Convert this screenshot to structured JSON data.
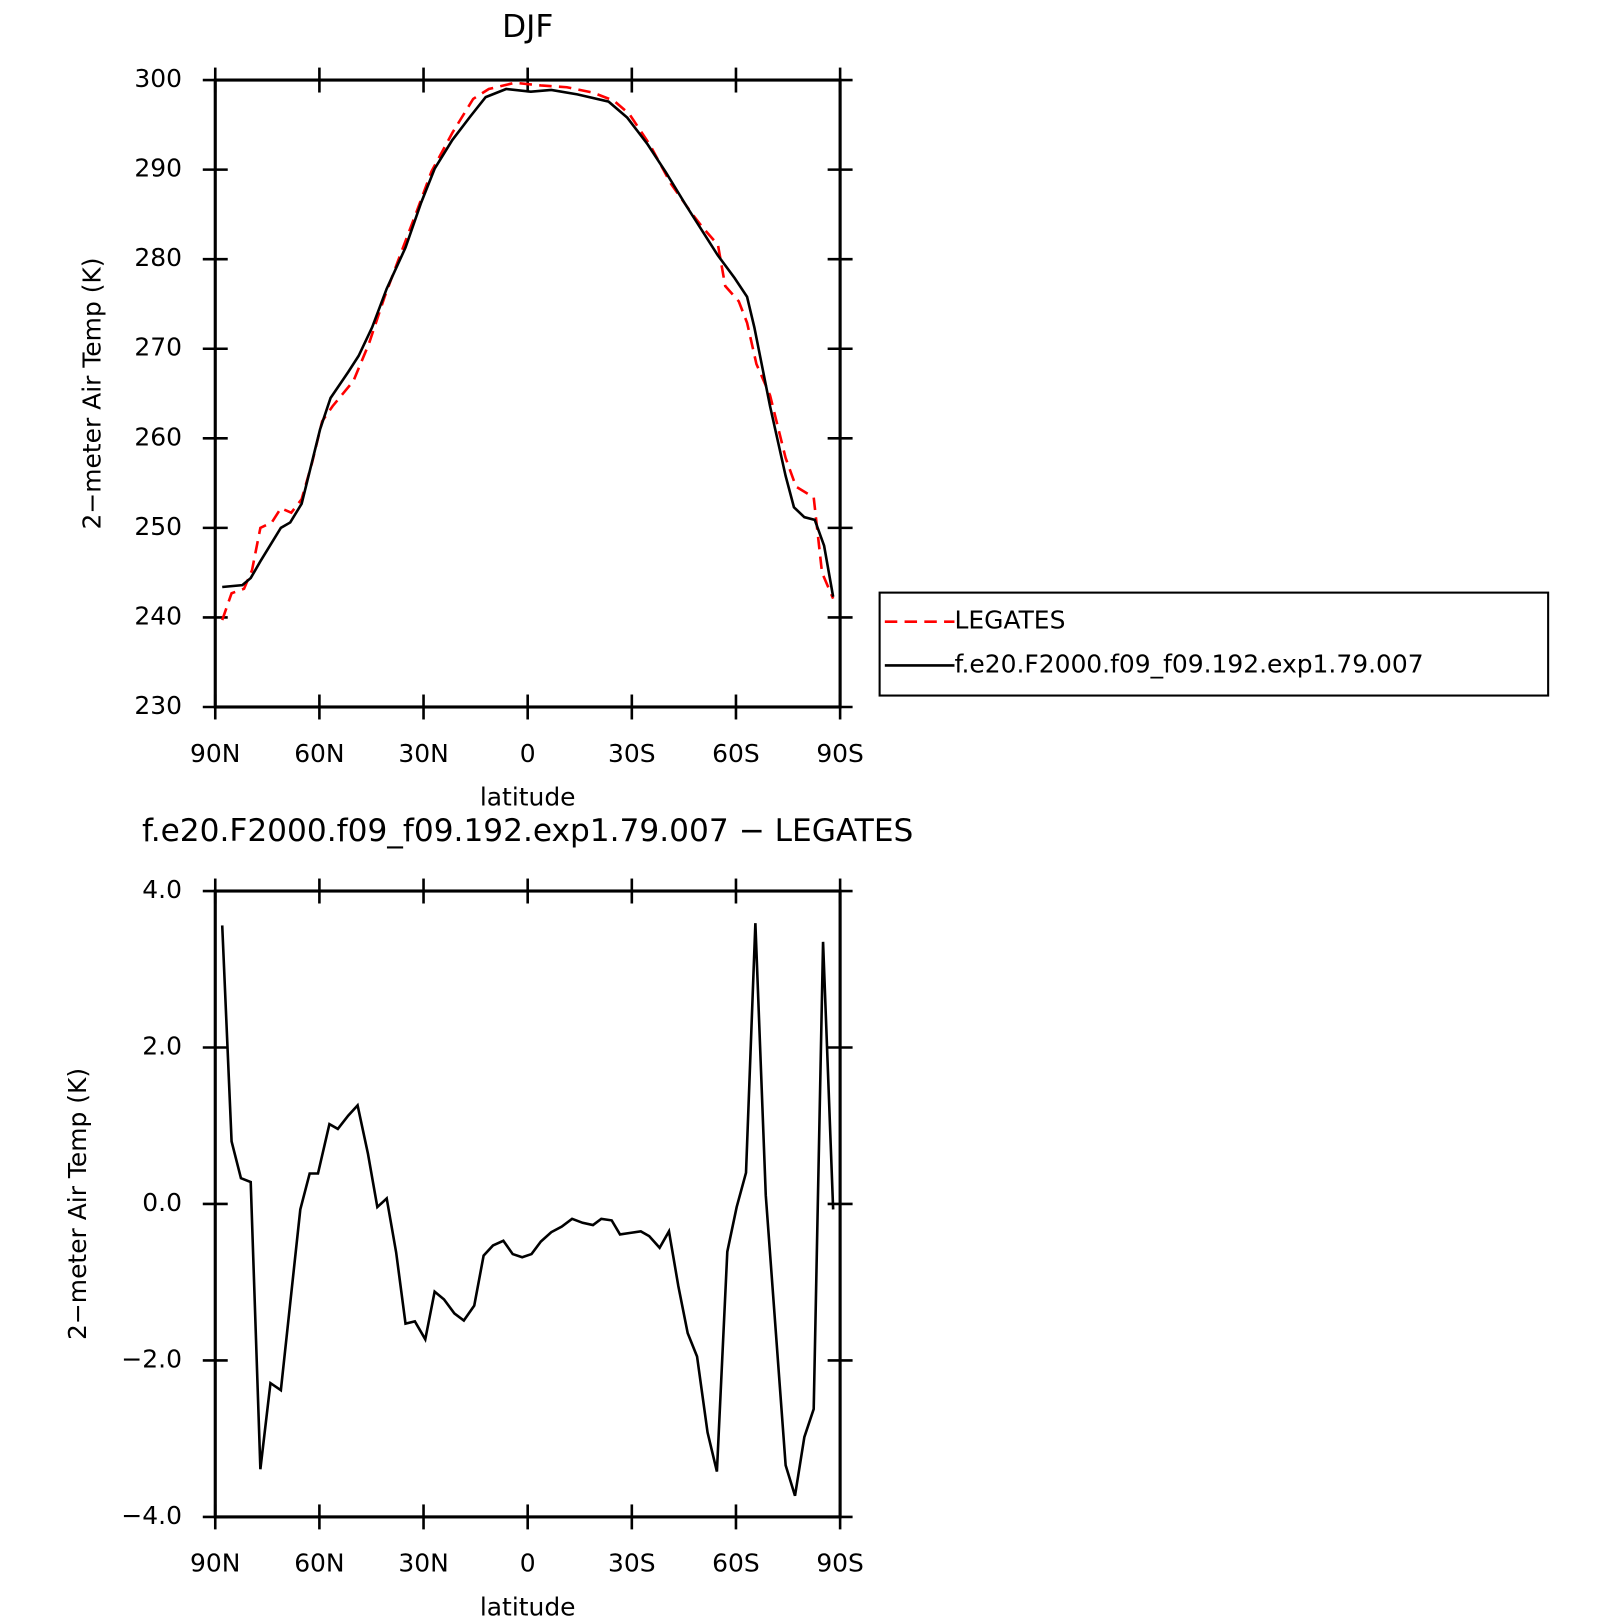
{
  "chart_data": [
    {
      "type": "line",
      "title": "DJF",
      "xlabel": "latitude",
      "ylabel": "2−meter Air Temp (K)",
      "xlim": [
        90,
        -90
      ],
      "xticks": [
        {
          "value": 90,
          "label": "90N"
        },
        {
          "value": 60,
          "label": "60N"
        },
        {
          "value": 30,
          "label": "30N"
        },
        0,
        {
          "value": -30,
          "label": "30S"
        },
        {
          "value": -60,
          "label": "60S"
        },
        {
          "value": -90,
          "label": "90S"
        }
      ],
      "ylim": [
        230,
        300
      ],
      "yticks": [
        230,
        240,
        250,
        260,
        270,
        280,
        290,
        300
      ],
      "legend": "right",
      "series": [
        {
          "name": "LEGATES",
          "color": "#ff0000",
          "dash": true,
          "x": [
            88,
            85.3,
            81.7,
            79.4,
            77,
            73.7,
            71.1,
            68.1,
            65.1,
            62.1,
            59.2,
            56.2,
            50.2,
            45.7,
            41.2,
            36.7,
            32.2,
            27.7,
            21.7,
            15.7,
            11.2,
            3.7,
            -3.8,
            -11.3,
            -18.8,
            -24.8,
            -29.3,
            -35.3,
            -41.3,
            -47.3,
            -50.3,
            -54.8,
            -56.9,
            -60.8,
            -63.2,
            -65.9,
            -69.8,
            -74.3,
            -77.3,
            -82.4,
            -84.8,
            -88
          ],
          "values": [
            239.7,
            242.7,
            243.2,
            245.3,
            250,
            250.6,
            252.2,
            251.7,
            253.2,
            257.3,
            261.9,
            263.6,
            266.4,
            270.6,
            275.8,
            280.5,
            285.1,
            289.8,
            294.1,
            297.9,
            299,
            299.7,
            299.4,
            299.2,
            298.6,
            297.7,
            296.2,
            292.7,
            288.4,
            285.1,
            283.6,
            281.6,
            277,
            275.3,
            272.9,
            268.3,
            264.8,
            257.8,
            254.6,
            253.4,
            245,
            242.1
          ]
        },
        {
          "name": "f.e20.F2000.f09_f09.192.exp1.79.007",
          "color": "#000000",
          "dash": false,
          "x": [
            88,
            82.2,
            79.8,
            77.1,
            71.1,
            68.4,
            65.1,
            59.8,
            56.8,
            51.7,
            48.7,
            44.8,
            40.6,
            35.2,
            30.7,
            26.8,
            21.7,
            16.6,
            12.1,
            6.2,
            -0.9,
            -6.8,
            -14.3,
            -23.3,
            -28.7,
            -34.4,
            -39.8,
            -45.8,
            -51.2,
            -54.8,
            -59.6,
            -63.2,
            -65.3,
            -69.8,
            -74.3,
            -76.7,
            -79.7,
            -82.7,
            -85.4,
            -88
          ],
          "values": [
            243.4,
            243.6,
            244.4,
            246.2,
            250,
            250.6,
            252.7,
            261,
            264.5,
            267.4,
            269.2,
            272.4,
            276.7,
            281.3,
            286.3,
            290.1,
            293.3,
            295.9,
            298.1,
            299,
            298.7,
            298.9,
            298.4,
            297.6,
            295.8,
            292.9,
            289.7,
            285.9,
            282.6,
            280.4,
            277.9,
            275.8,
            272.4,
            263.6,
            255.8,
            252.3,
            251.2,
            250.9,
            248,
            242.3
          ]
        }
      ]
    },
    {
      "type": "line",
      "title": "f.e20.F2000.f09_f09.192.exp1.79.007 − LEGATES",
      "xlabel": "latitude",
      "ylabel": "2−meter Air Temp (K)",
      "xlim": [
        90,
        -90
      ],
      "xticks": [
        {
          "value": 90,
          "label": "90N"
        },
        {
          "value": 60,
          "label": "60N"
        },
        {
          "value": 30,
          "label": "30N"
        },
        0,
        {
          "value": -30,
          "label": "30S"
        },
        {
          "value": -60,
          "label": "60S"
        },
        {
          "value": -90,
          "label": "90S"
        }
      ],
      "ylim": [
        -4,
        4
      ],
      "yticks": [
        {
          "value": -4,
          "label": "−4.0"
        },
        {
          "value": -2,
          "label": "−2.0"
        },
        {
          "value": 0,
          "label": "0.0"
        },
        {
          "value": 2,
          "label": "2.0"
        },
        {
          "value": 4,
          "label": "4.0"
        }
      ],
      "color": "#000000",
      "x": [
        88,
        85.3,
        82.6,
        79.8,
        77,
        74.1,
        71.1,
        65.5,
        62.8,
        60.4,
        57.1,
        54.7,
        51.7,
        49,
        46,
        43.3,
        40.6,
        37.9,
        35.2,
        32.5,
        29.5,
        26.8,
        24.1,
        21.1,
        18.4,
        15.4,
        12.7,
        10,
        7,
        4.3,
        1.6,
        -1.1,
        -3.8,
        -6.8,
        -9.8,
        -12.8,
        -15.8,
        -18.8,
        -21.2,
        -24.2,
        -26.6,
        -29.6,
        -32.6,
        -35,
        -38,
        -40.7,
        -43.4,
        -46.1,
        -48.8,
        -51.8,
        -54.5,
        -57.5,
        -60.2,
        -62.9,
        -65.6,
        -68.6,
        -74.3,
        -77,
        -79.7,
        -82.4,
        -85.1,
        -88
      ],
      "values": [
        3.56,
        0.8,
        0.33,
        0.28,
        -3.39,
        -2.29,
        -2.38,
        -0.07,
        0.39,
        0.39,
        1.02,
        0.96,
        1.13,
        1.26,
        0.64,
        -0.04,
        0.07,
        -0.62,
        -1.53,
        -1.5,
        -1.73,
        -1.12,
        -1.22,
        -1.4,
        -1.49,
        -1.3,
        -0.66,
        -0.53,
        -0.47,
        -0.64,
        -0.68,
        -0.64,
        -0.48,
        -0.36,
        -0.29,
        -0.19,
        -0.24,
        -0.27,
        -0.19,
        -0.21,
        -0.39,
        -0.37,
        -0.35,
        -0.41,
        -0.56,
        -0.35,
        -1.05,
        -1.65,
        -1.95,
        -2.92,
        -3.42,
        -0.61,
        -0.04,
        0.4,
        3.59,
        0.11,
        -3.34,
        -3.73,
        -2.98,
        -2.62,
        3.35,
        -0.07
      ]
    }
  ]
}
